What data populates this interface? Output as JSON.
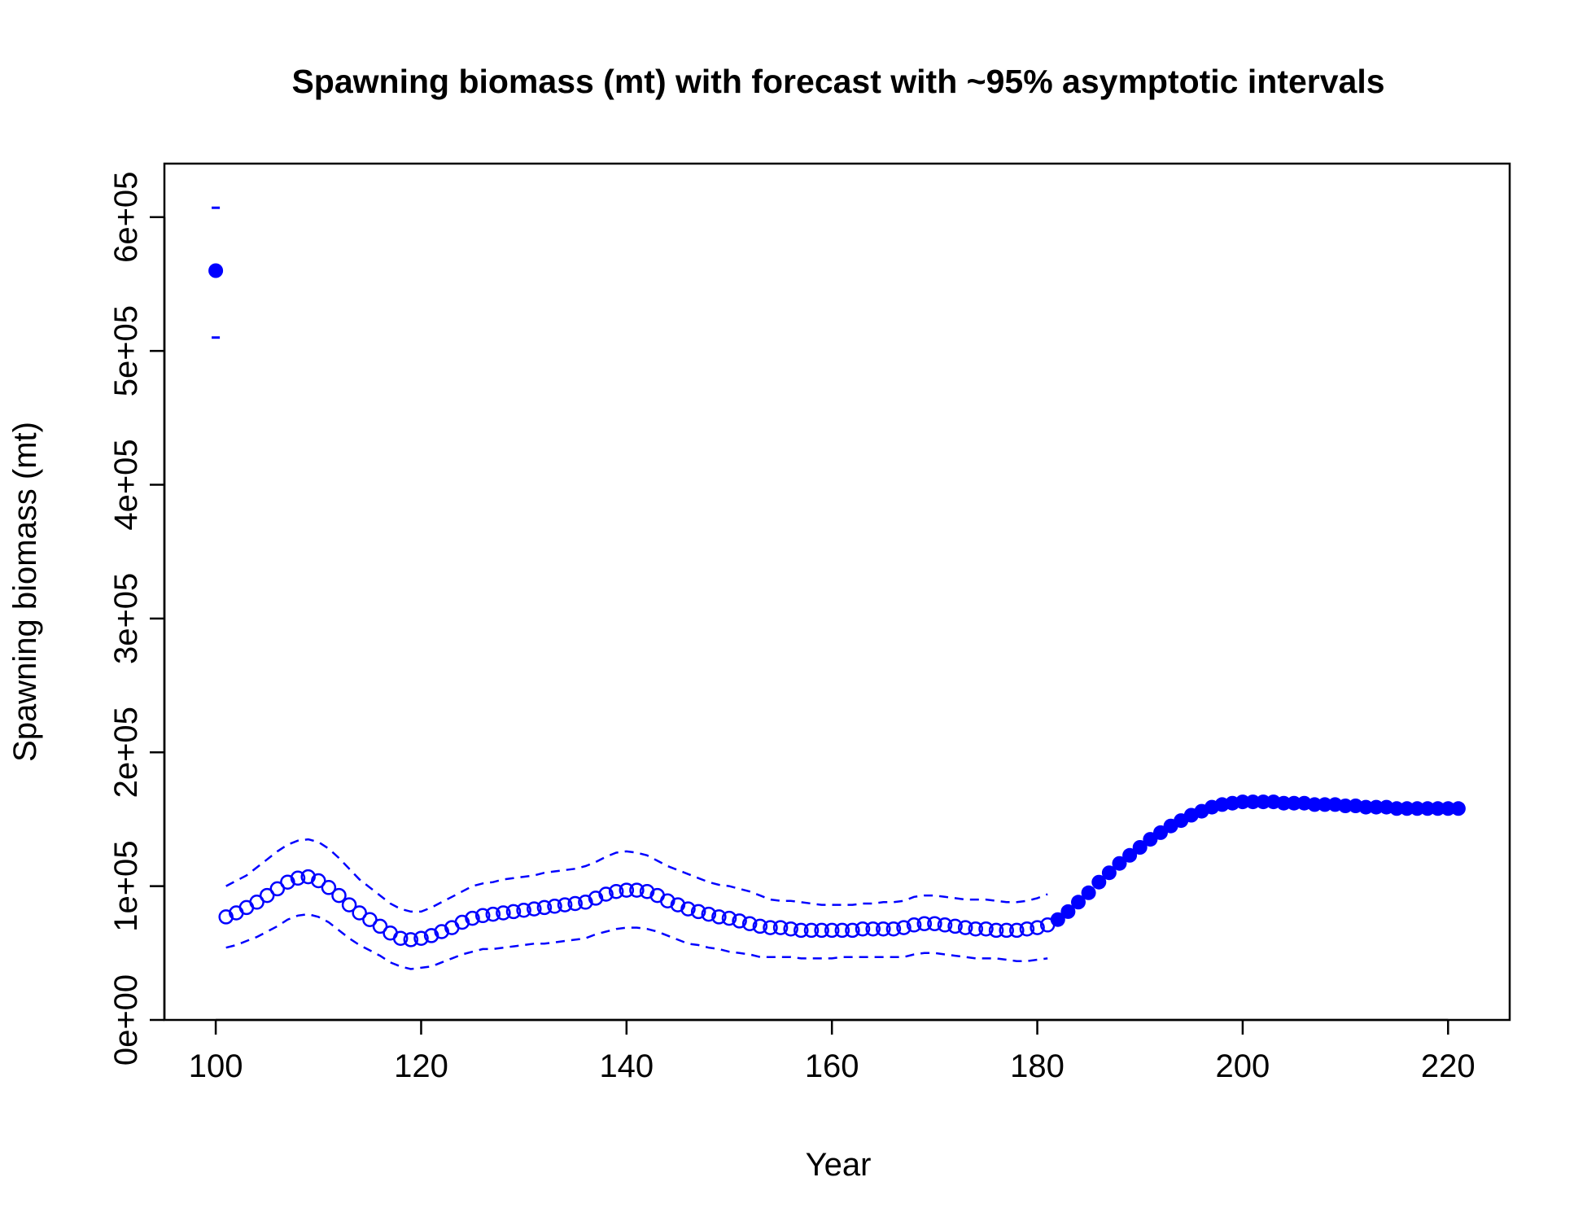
{
  "chart_data": {
    "type": "scatter",
    "title": "Spawning biomass (mt) with forecast with ~95% asymptotic intervals",
    "xlabel": "Year",
    "ylabel": "Spawning biomass (mt)",
    "xlim": [
      95,
      226
    ],
    "ylim": [
      0,
      640000
    ],
    "x_ticks": [
      100,
      120,
      140,
      160,
      180,
      200,
      220
    ],
    "x_tick_labels": [
      "100",
      "120",
      "140",
      "160",
      "180",
      "200",
      "220"
    ],
    "y_ticks": [
      0,
      100000,
      200000,
      300000,
      400000,
      500000,
      600000
    ],
    "y_tick_labels": [
      "0e+00",
      "1e+05",
      "2e+05",
      "3e+05",
      "4e+05",
      "5e+05",
      "6e+05"
    ],
    "grid": false,
    "colors": {
      "series": "#0000ff",
      "axis": "#000000"
    },
    "virgin": {
      "x": 100,
      "y": 560000,
      "lower": 510000,
      "upper": 607000
    },
    "series": [
      {
        "style": "open-circles",
        "x": [
          101,
          102,
          103,
          104,
          105,
          106,
          107,
          108,
          109,
          110,
          111,
          112,
          113,
          114,
          115,
          116,
          117,
          118,
          119,
          120,
          121,
          122,
          123,
          124,
          125,
          126,
          127,
          128,
          129,
          130,
          131,
          132,
          133,
          134,
          135,
          136,
          137,
          138,
          139,
          140,
          141,
          142,
          143,
          144,
          145,
          146,
          147,
          148,
          149,
          150,
          151,
          152,
          153,
          154,
          155,
          156,
          157,
          158,
          159,
          160,
          161,
          162,
          163,
          164,
          165,
          166,
          167,
          168,
          169,
          170,
          171,
          172,
          173,
          174,
          175,
          176,
          177,
          178,
          179,
          180,
          181
        ],
        "values": [
          77000,
          80000,
          84000,
          88000,
          93000,
          98000,
          103000,
          106000,
          107000,
          104000,
          99000,
          93000,
          86000,
          80000,
          75000,
          70000,
          65000,
          61000,
          60000,
          61000,
          63000,
          66000,
          69000,
          73000,
          76000,
          78000,
          79000,
          80000,
          81000,
          82000,
          83000,
          84000,
          85000,
          86000,
          87000,
          88000,
          91000,
          94000,
          96000,
          97000,
          97000,
          96000,
          93000,
          89000,
          86000,
          83000,
          81000,
          79000,
          77000,
          76000,
          74000,
          72000,
          70000,
          69000,
          69000,
          68000,
          67000,
          67000,
          67000,
          67000,
          67000,
          67000,
          68000,
          68000,
          68000,
          68000,
          69000,
          71000,
          72000,
          72000,
          71000,
          70000,
          69000,
          68000,
          68000,
          67000,
          67000,
          67000,
          68000,
          69000,
          71000
        ]
      },
      {
        "style": "filled-circles",
        "x": [
          182,
          183,
          184,
          185,
          186,
          187,
          188,
          189,
          190,
          191,
          192,
          193,
          194,
          195,
          196,
          197,
          198,
          199,
          200,
          201,
          202,
          203,
          204,
          205,
          206,
          207,
          208,
          209,
          210,
          211,
          212,
          213,
          214,
          215,
          216,
          217,
          218,
          219,
          220,
          221
        ],
        "values": [
          75000,
          81000,
          88000,
          95000,
          103000,
          110000,
          117000,
          123000,
          129000,
          135000,
          140000,
          145000,
          149000,
          153000,
          156000,
          159000,
          161000,
          162000,
          163000,
          163000,
          163000,
          163000,
          162000,
          162000,
          162000,
          161000,
          161000,
          161000,
          160000,
          160000,
          159000,
          159000,
          159000,
          158000,
          158000,
          158000,
          158000,
          158000,
          158000,
          158000
        ]
      }
    ],
    "interval": {
      "style": "dashed",
      "x": [
        101,
        102,
        103,
        104,
        105,
        106,
        107,
        108,
        109,
        110,
        111,
        112,
        113,
        114,
        115,
        116,
        117,
        118,
        119,
        120,
        121,
        122,
        123,
        124,
        125,
        126,
        127,
        128,
        129,
        130,
        131,
        132,
        133,
        134,
        135,
        136,
        137,
        138,
        139,
        140,
        141,
        142,
        143,
        144,
        145,
        146,
        147,
        148,
        149,
        150,
        151,
        152,
        153,
        154,
        155,
        156,
        157,
        158,
        159,
        160,
        161,
        162,
        163,
        164,
        165,
        166,
        167,
        168,
        169,
        170,
        171,
        172,
        173,
        174,
        175,
        176,
        177,
        178,
        179,
        180,
        181
      ],
      "upper": [
        100000,
        104000,
        108000,
        114000,
        120000,
        126000,
        131000,
        134000,
        135000,
        133000,
        128000,
        121000,
        113000,
        105000,
        99000,
        93000,
        87000,
        83000,
        81000,
        81000,
        84000,
        88000,
        92000,
        96000,
        100000,
        102000,
        103000,
        105000,
        106000,
        107000,
        108000,
        110000,
        111000,
        112000,
        113000,
        115000,
        118000,
        122000,
        125000,
        126000,
        125000,
        123000,
        119000,
        115000,
        112000,
        109000,
        106000,
        103000,
        101000,
        100000,
        98000,
        96000,
        93000,
        90000,
        89000,
        89000,
        88000,
        87000,
        86000,
        86000,
        86000,
        86000,
        87000,
        87000,
        88000,
        88000,
        89000,
        92000,
        93000,
        93000,
        92000,
        91000,
        90000,
        90000,
        90000,
        89000,
        88000,
        88000,
        89000,
        91000,
        94000
      ],
      "lower": [
        54000,
        56000,
        59000,
        62000,
        66000,
        70000,
        75000,
        78000,
        79000,
        77000,
        73000,
        67000,
        61000,
        56000,
        52000,
        48000,
        43000,
        40000,
        38000,
        39000,
        40000,
        43000,
        46000,
        49000,
        51000,
        53000,
        53000,
        54000,
        55000,
        56000,
        57000,
        57000,
        58000,
        59000,
        60000,
        61000,
        64000,
        66000,
        68000,
        69000,
        69000,
        68000,
        66000,
        63000,
        60000,
        57000,
        56000,
        54000,
        53000,
        51000,
        50000,
        49000,
        47000,
        47000,
        47000,
        47000,
        46000,
        46000,
        46000,
        46000,
        47000,
        47000,
        47000,
        47000,
        47000,
        47000,
        47000,
        49000,
        50000,
        50000,
        49000,
        48000,
        47000,
        46000,
        46000,
        46000,
        45000,
        44000,
        44000,
        45000,
        46000
      ]
    }
  }
}
